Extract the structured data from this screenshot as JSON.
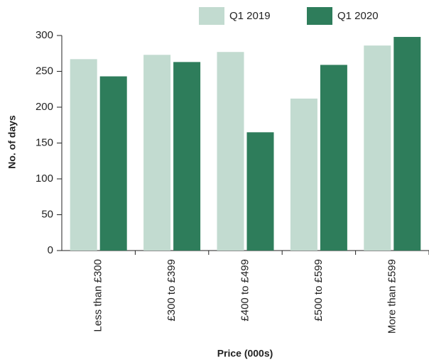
{
  "chart_data": {
    "type": "bar",
    "x_label": "Price (000s)",
    "y_label": "No. of days",
    "categories": [
      "Less than £300",
      "£300 to £399",
      "£400 to £499",
      "£500 to £599",
      "More than £599"
    ],
    "series": [
      {
        "name": "Q1 2019",
        "color": "#c2dbd0",
        "values": [
          267,
          273,
          277,
          212,
          286
        ]
      },
      {
        "name": "Q1 2020",
        "color": "#2e7d5b",
        "values": [
          243,
          263,
          165,
          259,
          298
        ]
      }
    ],
    "ylim": [
      0,
      300
    ],
    "yticks": [
      0,
      50,
      100,
      150,
      200,
      250,
      300
    ],
    "legend": "top"
  }
}
